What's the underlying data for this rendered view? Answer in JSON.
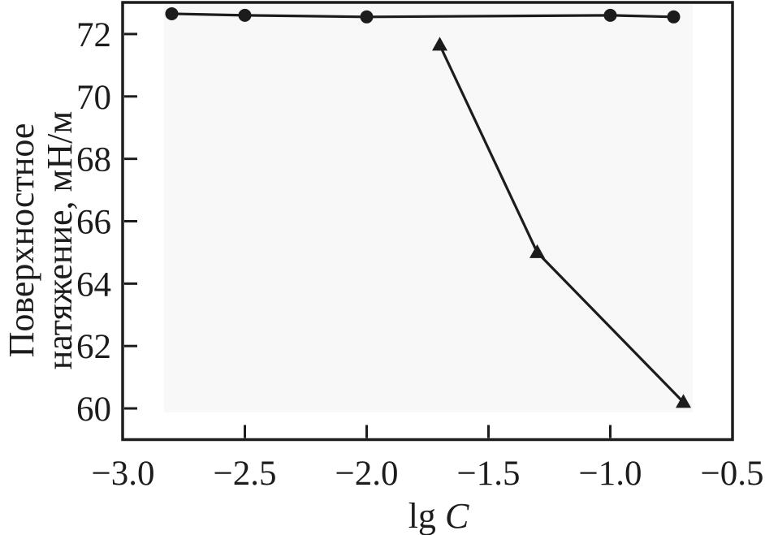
{
  "figure": {
    "background": "#ffffff",
    "ink_color": "#1c1c1c",
    "panel_tint": "#f8f8f8"
  },
  "chart_data": {
    "type": "line",
    "title": "",
    "xlabel": "lg C",
    "xlabel_prefix": "lg",
    "xlabel_symbol": "C",
    "ylabel": "Поверхностное натяжение, мН/м",
    "ylabel_line1": "Поверхностное",
    "ylabel_line2": "натяжение, мН/м",
    "xlim": [
      -3.0,
      -0.5
    ],
    "ylim": [
      59.0,
      73.0
    ],
    "xticks": [
      -3.0,
      -2.5,
      -2.0,
      -1.5,
      -1.0,
      -0.5
    ],
    "xtick_labels": [
      "−3.0",
      "−2.5",
      "−2.0",
      "−1.5",
      "−1.0",
      "−0.5"
    ],
    "xtick_marks": [
      -2.5,
      -2.0,
      -1.5,
      -1.0
    ],
    "yticks": [
      72,
      70,
      68,
      66,
      64,
      62,
      60
    ],
    "ytick_labels": [
      "72",
      "70",
      "68",
      "66",
      "64",
      "62",
      "60"
    ],
    "grid": false,
    "legend": "none",
    "series": [
      {
        "name": "circle-series",
        "marker": "circle",
        "color": "#1c1c1c",
        "points": [
          {
            "x": -2.8,
            "y": 72.65
          },
          {
            "x": -2.5,
            "y": 72.6
          },
          {
            "x": -2.0,
            "y": 72.55
          },
          {
            "x": -1.0,
            "y": 72.6
          },
          {
            "x": -0.74,
            "y": 72.55
          }
        ]
      },
      {
        "name": "triangle-series",
        "marker": "triangle-up",
        "color": "#1c1c1c",
        "points": [
          {
            "x": -1.7,
            "y": 71.65
          },
          {
            "x": -1.3,
            "y": 65.0
          },
          {
            "x": -0.7,
            "y": 60.2
          }
        ]
      }
    ]
  }
}
